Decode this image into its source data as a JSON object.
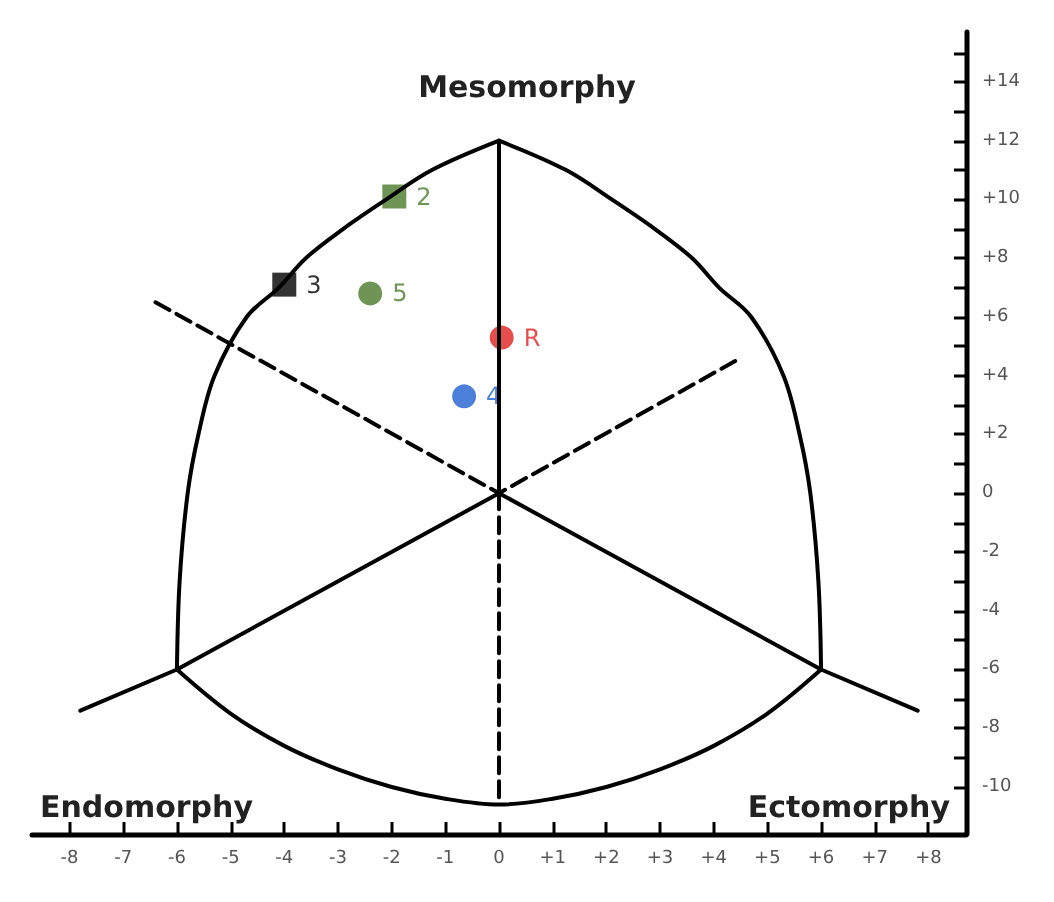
{
  "chart_data": {
    "type": "scatter",
    "xlim": [
      -8.7,
      8.7
    ],
    "ylim": [
      -11.6,
      15.7
    ],
    "xticks": [
      -8,
      -7,
      -6,
      -5,
      -4,
      -3,
      -2,
      -1,
      0,
      {
        "value": 1,
        "label": "+1"
      },
      {
        "value": 2,
        "label": "+2"
      },
      {
        "value": 3,
        "label": "+3"
      },
      {
        "value": 4,
        "label": "+4"
      },
      {
        "value": 5,
        "label": "+5"
      },
      {
        "value": 6,
        "label": "+6"
      },
      {
        "value": 7,
        "label": "+7"
      },
      {
        "value": 8,
        "label": "+8"
      }
    ],
    "yticks": [
      -10,
      {
        "value": -9,
        "label": null
      },
      -8,
      {
        "value": -7,
        "label": null
      },
      -6,
      {
        "value": -5,
        "label": null
      },
      -4,
      {
        "value": -3,
        "label": null
      },
      -2,
      {
        "value": -1,
        "label": null
      },
      0,
      {
        "value": 1,
        "label": null
      },
      {
        "value": 2,
        "label": "+2"
      },
      {
        "value": 3,
        "label": null
      },
      {
        "value": 4,
        "label": "+4"
      },
      {
        "value": 5,
        "label": null
      },
      {
        "value": 6,
        "label": "+6"
      },
      {
        "value": 7,
        "label": null
      },
      {
        "value": 8,
        "label": "+8"
      },
      {
        "value": 9,
        "label": null
      },
      {
        "value": 10,
        "label": "+10"
      },
      {
        "value": 11,
        "label": null
      },
      {
        "value": 12,
        "label": "+12"
      },
      {
        "value": 13,
        "label": null
      },
      {
        "value": 14,
        "label": "+14"
      },
      {
        "value": 15,
        "label": null
      }
    ],
    "grid": false,
    "legend": false,
    "annotations": [
      "Mesomorphy",
      "Endomorphy",
      "Ectomorphy"
    ],
    "series": [
      {
        "type": "line",
        "color": "#000000",
        "line_style": "solid",
        "x": [
          -6,
          -5.95,
          -5.8,
          -5.6,
          -5.3,
          -4.7,
          -4.1,
          -3.6,
          -2.9,
          -2.1,
          -1.25,
          0
        ],
        "values": [
          -6,
          -3,
          0,
          2,
          4,
          6,
          7,
          8,
          9,
          10,
          11,
          12
        ]
      },
      {
        "type": "line",
        "color": "#000000",
        "line_style": "solid",
        "x": [
          6,
          5.95,
          5.8,
          5.6,
          5.3,
          4.7,
          4.1,
          3.6,
          2.9,
          2.1,
          1.25,
          0
        ],
        "values": [
          -6,
          -3,
          0,
          2,
          4,
          6,
          7,
          8,
          9,
          10,
          11,
          12
        ]
      },
      {
        "type": "line",
        "color": "#000000",
        "line_style": "solid",
        "x": [
          -6,
          -5,
          -4,
          -3,
          -2,
          -1,
          0,
          1,
          2,
          3,
          4,
          5,
          6
        ],
        "values": [
          -6,
          -7.5,
          -8.6,
          -9.4,
          -10,
          -10.4,
          -10.6,
          -10.4,
          -10,
          -9.4,
          -8.6,
          -7.5,
          -6
        ]
      },
      {
        "type": "line",
        "color": "#000000",
        "line_style": "solid",
        "x": [
          0,
          0
        ],
        "values": [
          0,
          12
        ]
      },
      {
        "type": "line",
        "color": "#000000",
        "line_style": "solid",
        "x": [
          -7.8,
          -6,
          0,
          6,
          7.8
        ],
        "values": [
          -7.4,
          -6,
          0,
          -6,
          -7.4
        ]
      },
      {
        "type": "line",
        "color": "#000000",
        "line_style": "dashed",
        "x": [
          0,
          0
        ],
        "values": [
          0,
          -10.6
        ]
      },
      {
        "type": "line",
        "color": "#000000",
        "line_style": "dashed",
        "x": [
          -6.4,
          0,
          4.4
        ],
        "values": [
          6.5,
          0,
          4.5
        ]
      },
      {
        "name": "3",
        "color": "#000000",
        "marker": "square",
        "x": [
          -4
        ],
        "values": [
          7.1
        ]
      },
      {
        "name": "2",
        "color": "#4a7a2a",
        "marker": "square",
        "x": [
          -1.95
        ],
        "values": [
          10.1
        ]
      },
      {
        "name": "5",
        "color": "#4a7a2a",
        "marker": "circle",
        "x": [
          -2.4
        ],
        "values": [
          6.8
        ]
      },
      {
        "name": "R",
        "color": "#e02020",
        "marker": "circle",
        "x": [
          0.05
        ],
        "values": [
          5.3
        ]
      },
      {
        "name": "4",
        "color": "#1f5fd0",
        "marker": "circle",
        "x": [
          -0.65
        ],
        "values": [
          3.3
        ]
      }
    ]
  }
}
